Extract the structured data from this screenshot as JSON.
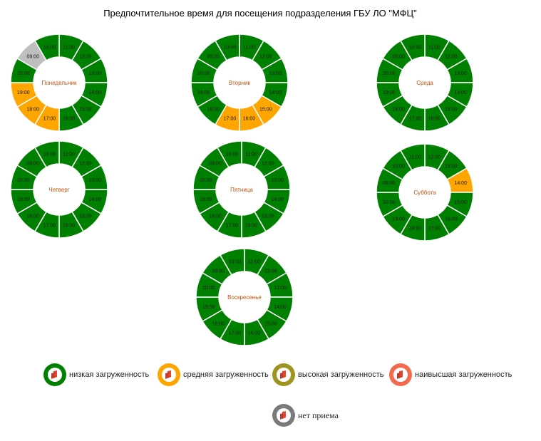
{
  "chart_data": {
    "type": "pie",
    "title": "Предпочтительное время для посещения подразделения ГБУ ЛО \"МФЦ\"",
    "legend": [
      {
        "key": "low",
        "label": "низкая загруженность",
        "color": "#008000"
      },
      {
        "key": "medium",
        "label": "средняя загруженность",
        "color": "#FFA500"
      },
      {
        "key": "high",
        "label": "высокая загруженность",
        "color": "#9E9420"
      },
      {
        "key": "highest",
        "label": "наивысшая загруженность",
        "color": "#F26B4E"
      },
      {
        "key": "none",
        "label": "нет приема",
        "color": "#BEBEBE"
      }
    ],
    "days": [
      {
        "name": "Понедельник",
        "slots": [
          {
            "time": "11:00",
            "status": "low"
          },
          {
            "time": "12:00",
            "status": "low"
          },
          {
            "time": "13:00",
            "status": "low"
          },
          {
            "time": "14:00",
            "status": "low"
          },
          {
            "time": "15:00",
            "status": "low"
          },
          {
            "time": "16:00",
            "status": "low"
          },
          {
            "time": "17:00",
            "status": "medium"
          },
          {
            "time": "18:00",
            "status": "medium"
          },
          {
            "time": "19:00",
            "status": "medium"
          },
          {
            "time": "20:00",
            "status": "low"
          },
          {
            "time": "09:00",
            "status": "none"
          },
          {
            "time": "10:00",
            "status": "low"
          }
        ]
      },
      {
        "name": "Вторник",
        "slots": [
          {
            "time": "11:00",
            "status": "low"
          },
          {
            "time": "12:00",
            "status": "low"
          },
          {
            "time": "13:00",
            "status": "low"
          },
          {
            "time": "14:00",
            "status": "low"
          },
          {
            "time": "15:00",
            "status": "medium"
          },
          {
            "time": "16:00",
            "status": "medium"
          },
          {
            "time": "17:00",
            "status": "medium"
          },
          {
            "time": "18:00",
            "status": "low"
          },
          {
            "time": "19:00",
            "status": "low"
          },
          {
            "time": "20:00",
            "status": "low"
          },
          {
            "time": "09:00",
            "status": "low"
          },
          {
            "time": "10:00",
            "status": "low"
          }
        ]
      },
      {
        "name": "Среда",
        "slots": [
          {
            "time": "11:00",
            "status": "low"
          },
          {
            "time": "12:00",
            "status": "low"
          },
          {
            "time": "13:00",
            "status": "low"
          },
          {
            "time": "14:00",
            "status": "low"
          },
          {
            "time": "15:00",
            "status": "low"
          },
          {
            "time": "16:00",
            "status": "low"
          },
          {
            "time": "17:00",
            "status": "low"
          },
          {
            "time": "18:00",
            "status": "low"
          },
          {
            "time": "19:00",
            "status": "low"
          },
          {
            "time": "20:00",
            "status": "low"
          },
          {
            "time": "09:00",
            "status": "low"
          },
          {
            "time": "10:00",
            "status": "low"
          }
        ]
      },
      {
        "name": "Четверг",
        "slots": [
          {
            "time": "11:00",
            "status": "low"
          },
          {
            "time": "12:00",
            "status": "low"
          },
          {
            "time": "13:00",
            "status": "low"
          },
          {
            "time": "14:00",
            "status": "low"
          },
          {
            "time": "15:00",
            "status": "low"
          },
          {
            "time": "16:00",
            "status": "low"
          },
          {
            "time": "17:00",
            "status": "low"
          },
          {
            "time": "18:00",
            "status": "low"
          },
          {
            "time": "19:00",
            "status": "low"
          },
          {
            "time": "20:00",
            "status": "low"
          },
          {
            "time": "09:00",
            "status": "low"
          },
          {
            "time": "10:00",
            "status": "low"
          }
        ]
      },
      {
        "name": "Пятница",
        "slots": [
          {
            "time": "11:00",
            "status": "low"
          },
          {
            "time": "12:00",
            "status": "low"
          },
          {
            "time": "13:00",
            "status": "low"
          },
          {
            "time": "14:00",
            "status": "low"
          },
          {
            "time": "15:00",
            "status": "low"
          },
          {
            "time": "16:00",
            "status": "low"
          },
          {
            "time": "17:00",
            "status": "low"
          },
          {
            "time": "18:00",
            "status": "low"
          },
          {
            "time": "19:00",
            "status": "low"
          },
          {
            "time": "20:00",
            "status": "low"
          },
          {
            "time": "09:00",
            "status": "low"
          },
          {
            "time": "10:00",
            "status": "low"
          }
        ]
      },
      {
        "name": "Суббота",
        "slots": [
          {
            "time": "12:00",
            "status": "low"
          },
          {
            "time": "13:00",
            "status": "low"
          },
          {
            "time": "14:00",
            "status": "medium"
          },
          {
            "time": "15:00",
            "status": "low"
          },
          {
            "time": "16:00",
            "status": "low"
          },
          {
            "time": "17:00",
            "status": "low"
          },
          {
            "time": "18:00",
            "status": "low"
          },
          {
            "time": "19:00",
            "status": "low"
          },
          {
            "time": "20:00",
            "status": "low"
          },
          {
            "time": "09:00",
            "status": "low"
          },
          {
            "time": "10:00",
            "status": "low"
          },
          {
            "time": "11:00",
            "status": "low"
          }
        ]
      },
      {
        "name": "Воскресенье",
        "slots": [
          {
            "time": "11:00",
            "status": "low"
          },
          {
            "time": "12:00",
            "status": "low"
          },
          {
            "time": "13:00",
            "status": "low"
          },
          {
            "time": "14:00",
            "status": "low"
          },
          {
            "time": "15:00",
            "status": "low"
          },
          {
            "time": "16:00",
            "status": "low"
          },
          {
            "time": "17:00",
            "status": "low"
          },
          {
            "time": "18:00",
            "status": "low"
          },
          {
            "time": "19:00",
            "status": "low"
          },
          {
            "time": "20:00",
            "status": "low"
          },
          {
            "time": "09:00",
            "status": "low"
          },
          {
            "time": "10:00",
            "status": "low"
          }
        ]
      }
    ]
  }
}
